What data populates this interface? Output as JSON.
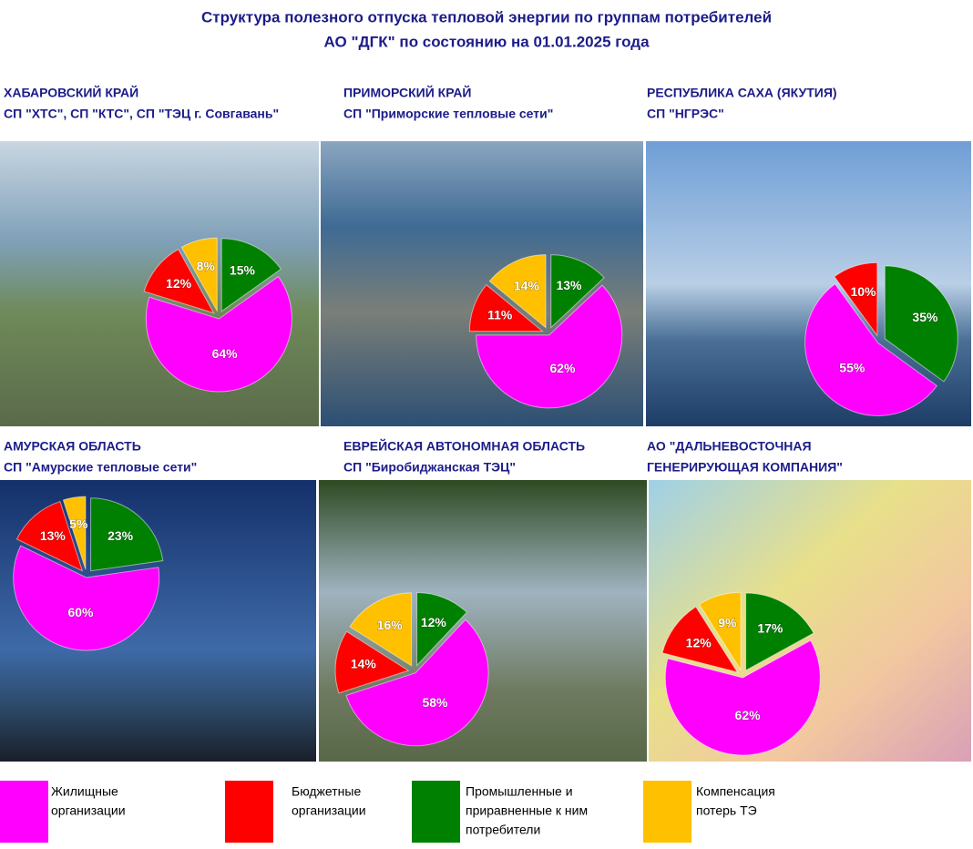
{
  "title": [
    "Структура полезного отпуска  тепловой энергии по группам потребителей",
    "АО \"ДГК\" по состоянию на 01.01.2025 года"
  ],
  "legend": {
    "categories": [
      [
        "Жилищные",
        "организации"
      ],
      [
        "Бюджетные",
        "организации"
      ],
      [
        "Промышленные и",
        "приравненные к ним",
        "потребители"
      ],
      [
        "Компенсация",
        "потерь ТЭ"
      ]
    ],
    "colors": [
      "#ff00ff",
      "#ff0000",
      "#008000",
      "#ffc000"
    ]
  },
  "chart_data": [
    {
      "type": "pie",
      "title": [
        "ХАБАРОВСКИЙ КРАЙ",
        "СП \"ХТС\", СП \"КТС\", СП \"ТЭЦ г. Совгавань\""
      ],
      "values": [
        64,
        12,
        15,
        8
      ],
      "value_labels": [
        "64%",
        "12%",
        "15%",
        "8%"
      ]
    },
    {
      "type": "pie",
      "title": [
        "ПРИМОРСКИЙ КРАЙ",
        "СП \"Приморские тепловые сети\""
      ],
      "values": [
        62,
        11,
        13,
        14
      ],
      "value_labels": [
        "62%",
        "11%",
        "13%",
        "14%"
      ]
    },
    {
      "type": "pie",
      "title": [
        "РЕСПУБЛИКА САХА (ЯКУТИЯ)",
        "СП \"НГРЭС\""
      ],
      "values": [
        55,
        10,
        35,
        null
      ],
      "value_labels": [
        "55%",
        "10%",
        "35%",
        null
      ]
    },
    {
      "type": "pie",
      "title": [
        "АМУРСКАЯ ОБЛАСТЬ",
        "СП \"Амурские тепловые сети\""
      ],
      "values": [
        60,
        13,
        23,
        5
      ],
      "value_labels": [
        "60%",
        "13%",
        "23%",
        "5%"
      ]
    },
    {
      "type": "pie",
      "title": [
        "ЕВРЕЙСКАЯ АВТОНОМНАЯ ОБЛАСТЬ",
        "СП \"Биробиджанская ТЭЦ\""
      ],
      "values": [
        58,
        14,
        12,
        16
      ],
      "value_labels": [
        "58%",
        "14%",
        "12%",
        "16%"
      ]
    },
    {
      "type": "pie",
      "title": [
        "АО \"ДАЛЬНЕВОСТОЧНАЯ",
        "ГЕНЕРИРУЮЩАЯ КОМПАНИЯ\""
      ],
      "values": [
        62,
        12,
        17,
        9
      ],
      "value_labels": [
        "62%",
        "12%",
        "17%",
        "9%"
      ]
    }
  ]
}
